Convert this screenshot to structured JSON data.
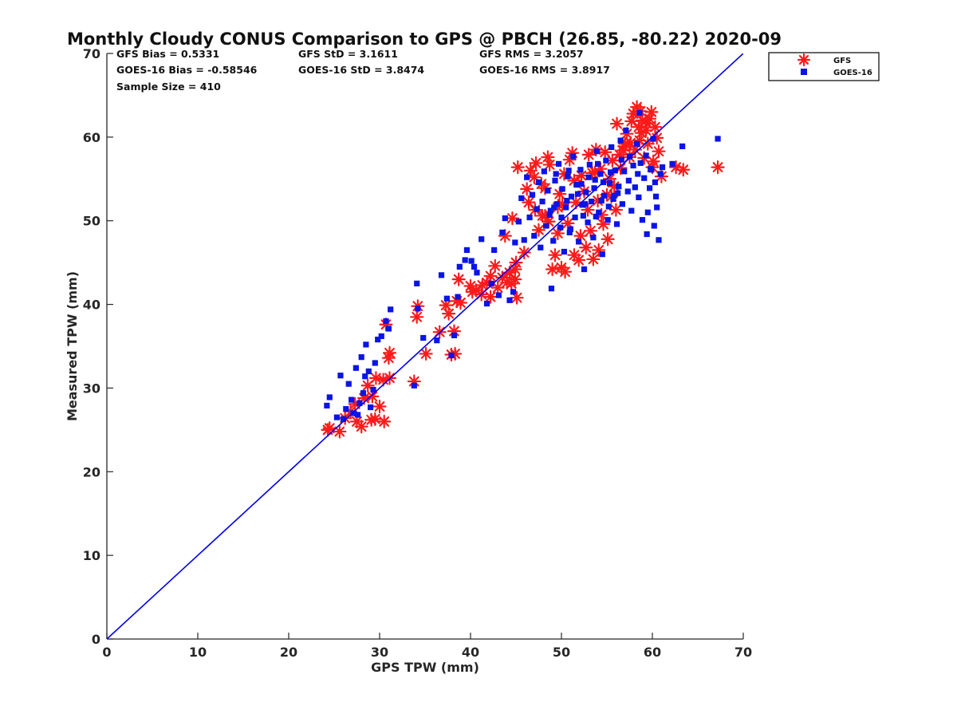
{
  "chart_data": {
    "type": "scatter",
    "title": "Monthly Cloudy CONUS Comparison to GPS @ PBCH (26.85, -80.22) 2020-09",
    "xlabel": "GPS TPW (mm)",
    "ylabel": "Measured TPW (mm)",
    "xlim": [
      0,
      70
    ],
    "ylim": [
      0,
      70
    ],
    "xticks": [
      "0",
      "10",
      "20",
      "30",
      "40",
      "50",
      "60",
      "70"
    ],
    "yticks": [
      "0",
      "10",
      "20",
      "30",
      "40",
      "50",
      "60",
      "70"
    ],
    "grid": false,
    "legend_position": "top-right",
    "annotations": {
      "gfs_bias": "GFS Bias = 0.5331",
      "gfs_std": "GFS StD = 3.1611",
      "gfs_rms": "GFS RMS = 3.2057",
      "goes_bias": "GOES-16 Bias = -0.58546",
      "goes_std": "GOES-16 StD = 3.8474",
      "goes_rms": "GOES-16 RMS = 3.8917",
      "sample_size": "Sample Size = 410"
    },
    "reference_line": {
      "x": [
        0,
        70
      ],
      "y": [
        0,
        70
      ],
      "color": "#0000ee"
    },
    "series": [
      {
        "name": "GFS",
        "marker": "asterisk",
        "color": "#ff1a1a",
        "points": [
          [
            24.5,
            25.2
          ],
          [
            24.3,
            25.0
          ],
          [
            25.6,
            24.8
          ],
          [
            26.2,
            26.4
          ],
          [
            26.8,
            27.2
          ],
          [
            27.5,
            26.0
          ],
          [
            28.0,
            25.4
          ],
          [
            27.3,
            28.1
          ],
          [
            28.3,
            28.8
          ],
          [
            28.7,
            30.3
          ],
          [
            29.2,
            29.0
          ],
          [
            29.1,
            26.2
          ],
          [
            29.6,
            31.2
          ],
          [
            30.0,
            27.8
          ],
          [
            30.4,
            31.0
          ],
          [
            30.5,
            26.0
          ],
          [
            30.7,
            37.6
          ],
          [
            31.0,
            33.6
          ],
          [
            31.1,
            31.2
          ],
          [
            31.1,
            34.2
          ],
          [
            29.5,
            26.3
          ],
          [
            33.8,
            30.8
          ],
          [
            34.2,
            39.8
          ],
          [
            34.1,
            38.5
          ],
          [
            35.1,
            34.1
          ],
          [
            36.6,
            36.7
          ],
          [
            37.3,
            39.9
          ],
          [
            37.6,
            38.9
          ],
          [
            37.9,
            34.0
          ],
          [
            38.3,
            34.1
          ],
          [
            38.2,
            36.8
          ],
          [
            38.5,
            40.4
          ],
          [
            38.9,
            40.2
          ],
          [
            38.7,
            43.0
          ],
          [
            40.0,
            42.2
          ],
          [
            40.2,
            41.5
          ],
          [
            40.6,
            41.7
          ],
          [
            41.3,
            42.3
          ],
          [
            41.8,
            42.6
          ],
          [
            42.2,
            40.9
          ],
          [
            42.7,
            44.6
          ],
          [
            43.0,
            42.0
          ],
          [
            43.5,
            43.2
          ],
          [
            44.0,
            42.6
          ],
          [
            43.8,
            48.2
          ],
          [
            44.3,
            43.8
          ],
          [
            44.5,
            42.5
          ],
          [
            44.9,
            43.0
          ],
          [
            45.0,
            45.0
          ],
          [
            45.1,
            40.8
          ],
          [
            44.6,
            50.3
          ],
          [
            45.2,
            56.4
          ],
          [
            45.9,
            46.2
          ],
          [
            46.2,
            53.8
          ],
          [
            46.4,
            52.2
          ],
          [
            46.6,
            56.0
          ],
          [
            47.0,
            55.2
          ],
          [
            47.2,
            56.9
          ],
          [
            47.5,
            48.9
          ],
          [
            47.8,
            54.4
          ],
          [
            47.9,
            50.6
          ],
          [
            48.2,
            53.9
          ],
          [
            48.5,
            57.6
          ],
          [
            48.6,
            49.9
          ],
          [
            48.7,
            56.7
          ],
          [
            49.0,
            44.2
          ],
          [
            49.3,
            45.9
          ],
          [
            49.6,
            48.5
          ],
          [
            49.8,
            53.2
          ],
          [
            50.0,
            44.4
          ],
          [
            50.1,
            52.0
          ],
          [
            50.3,
            55.6
          ],
          [
            50.4,
            43.9
          ],
          [
            50.7,
            49.7
          ],
          [
            50.9,
            57.3
          ],
          [
            51.2,
            58.1
          ],
          [
            51.4,
            54.8
          ],
          [
            51.4,
            45.9
          ],
          [
            51.6,
            52.2
          ],
          [
            51.9,
            45.3
          ],
          [
            52.1,
            48.2
          ],
          [
            52.2,
            55.4
          ],
          [
            52.5,
            53.5
          ],
          [
            52.7,
            46.8
          ],
          [
            52.9,
            51.3
          ],
          [
            53.0,
            57.9
          ],
          [
            53.2,
            48.8
          ],
          [
            53.4,
            55.7
          ],
          [
            53.5,
            45.4
          ],
          [
            53.8,
            58.5
          ],
          [
            54.0,
            52.4
          ],
          [
            54.1,
            46.5
          ],
          [
            54.3,
            56.2
          ],
          [
            54.6,
            49.6
          ],
          [
            54.8,
            58.2
          ],
          [
            55.0,
            53.1
          ],
          [
            55.1,
            47.8
          ],
          [
            55.3,
            55.0
          ],
          [
            55.6,
            57.2
          ],
          [
            55.8,
            54.1
          ],
          [
            56.1,
            61.6
          ],
          [
            56.4,
            57.9
          ],
          [
            56.5,
            56.3
          ],
          [
            56.8,
            58.4
          ],
          [
            57.0,
            59.2
          ],
          [
            57.2,
            60.4
          ],
          [
            57.5,
            57.6
          ],
          [
            57.7,
            61.9
          ],
          [
            57.9,
            62.8
          ],
          [
            58.1,
            58.5
          ],
          [
            58.3,
            63.6
          ],
          [
            58.5,
            61.2
          ],
          [
            58.6,
            59.6
          ],
          [
            58.7,
            63.1
          ],
          [
            58.9,
            62.0
          ],
          [
            59.1,
            57.5
          ],
          [
            59.3,
            60.8
          ],
          [
            59.5,
            59.2
          ],
          [
            59.7,
            62.2
          ],
          [
            59.9,
            63.0
          ],
          [
            60.1,
            57.1
          ],
          [
            60.3,
            61.2
          ],
          [
            60.5,
            59.9
          ],
          [
            60.7,
            58.3
          ],
          [
            61.0,
            55.3
          ],
          [
            56.9,
            58.9
          ],
          [
            57.6,
            59.3
          ],
          [
            58.8,
            60.5
          ],
          [
            59.4,
            61.6
          ],
          [
            60.0,
            56.4
          ],
          [
            62.6,
            56.4
          ],
          [
            63.4,
            56.1
          ],
          [
            67.2,
            56.4
          ],
          [
            44.9,
            44.2
          ],
          [
            42.2,
            43.4
          ],
          [
            41.2,
            41.2
          ],
          [
            48.2,
            50.6
          ],
          [
            47.1,
            51.3
          ],
          [
            49.6,
            51.6
          ],
          [
            53.7,
            55.8
          ],
          [
            55.5,
            52.9
          ],
          [
            56.0,
            51.3
          ],
          [
            54.4,
            50.7
          ]
        ]
      },
      {
        "name": "GOES-16",
        "marker": "square",
        "color": "#0a14e6",
        "points": [
          [
            24.2,
            27.9
          ],
          [
            24.5,
            28.9
          ],
          [
            25.3,
            26.5
          ],
          [
            25.7,
            31.5
          ],
          [
            26.0,
            26.3
          ],
          [
            26.3,
            27.5
          ],
          [
            26.6,
            30.5
          ],
          [
            26.9,
            28.6
          ],
          [
            27.1,
            27.0
          ],
          [
            27.4,
            32.4
          ],
          [
            27.6,
            26.8
          ],
          [
            27.8,
            28.2
          ],
          [
            28.0,
            33.7
          ],
          [
            28.2,
            29.4
          ],
          [
            28.4,
            31.4
          ],
          [
            28.5,
            35.2
          ],
          [
            28.8,
            32.0
          ],
          [
            29.0,
            27.7
          ],
          [
            29.3,
            29.8
          ],
          [
            29.5,
            33.0
          ],
          [
            29.8,
            35.8
          ],
          [
            30.2,
            36.2
          ],
          [
            30.7,
            38.0
          ],
          [
            31.0,
            37.1
          ],
          [
            31.2,
            39.4
          ],
          [
            33.8,
            30.3
          ],
          [
            34.1,
            42.5
          ],
          [
            34.2,
            39.5
          ],
          [
            34.8,
            36.0
          ],
          [
            36.3,
            35.7
          ],
          [
            36.8,
            43.5
          ],
          [
            37.4,
            40.7
          ],
          [
            37.9,
            33.9
          ],
          [
            38.2,
            36.3
          ],
          [
            38.6,
            40.9
          ],
          [
            38.8,
            44.5
          ],
          [
            39.4,
            45.3
          ],
          [
            39.6,
            46.5
          ],
          [
            40.1,
            45.2
          ],
          [
            40.4,
            44.5
          ],
          [
            40.7,
            43.8
          ],
          [
            41.2,
            47.8
          ],
          [
            41.8,
            40.1
          ],
          [
            42.3,
            42.5
          ],
          [
            42.6,
            46.5
          ],
          [
            43.1,
            41.1
          ],
          [
            43.5,
            48.6
          ],
          [
            43.8,
            50.3
          ],
          [
            44.3,
            40.5
          ],
          [
            44.7,
            41.5
          ],
          [
            44.9,
            47.4
          ],
          [
            45.3,
            49.9
          ],
          [
            45.6,
            52.7
          ],
          [
            45.9,
            47.7
          ],
          [
            46.2,
            55.2
          ],
          [
            46.5,
            50.4
          ],
          [
            46.8,
            53.1
          ],
          [
            47.0,
            48.2
          ],
          [
            47.3,
            51.4
          ],
          [
            47.5,
            54.6
          ],
          [
            47.7,
            46.8
          ],
          [
            47.9,
            52.3
          ],
          [
            48.1,
            55.9
          ],
          [
            48.3,
            49.4
          ],
          [
            48.5,
            53.6
          ],
          [
            48.7,
            50.7
          ],
          [
            48.9,
            41.9
          ],
          [
            49.1,
            47.6
          ],
          [
            49.3,
            54.8
          ],
          [
            49.5,
            52.0
          ],
          [
            49.7,
            56.8
          ],
          [
            49.9,
            49.2
          ],
          [
            50.1,
            53.8
          ],
          [
            50.3,
            46.3
          ],
          [
            50.5,
            51.6
          ],
          [
            50.7,
            55.3
          ],
          [
            50.9,
            48.6
          ],
          [
            51.1,
            52.9
          ],
          [
            51.3,
            57.7
          ],
          [
            51.5,
            50.4
          ],
          [
            51.7,
            54.3
          ],
          [
            51.9,
            47.5
          ],
          [
            52.1,
            56.1
          ],
          [
            52.3,
            51.9
          ],
          [
            52.5,
            44.2
          ],
          [
            52.7,
            53.4
          ],
          [
            52.9,
            49.8
          ],
          [
            53.1,
            56.7
          ],
          [
            53.3,
            52.3
          ],
          [
            53.5,
            48.0
          ],
          [
            53.7,
            54.9
          ],
          [
            53.9,
            58.3
          ],
          [
            54.1,
            51.0
          ],
          [
            54.3,
            55.6
          ],
          [
            54.5,
            46.0
          ],
          [
            54.7,
            53.0
          ],
          [
            54.9,
            57.2
          ],
          [
            55.1,
            50.1
          ],
          [
            55.3,
            54.5
          ],
          [
            55.5,
            58.8
          ],
          [
            55.7,
            52.6
          ],
          [
            55.9,
            56.0
          ],
          [
            56.1,
            49.6
          ],
          [
            56.3,
            54.1
          ],
          [
            56.5,
            59.6
          ],
          [
            56.7,
            52.0
          ],
          [
            56.9,
            55.9
          ],
          [
            57.1,
            60.8
          ],
          [
            57.3,
            53.5
          ],
          [
            57.5,
            57.7
          ],
          [
            57.7,
            51.2
          ],
          [
            57.9,
            56.6
          ],
          [
            58.1,
            54.0
          ],
          [
            58.3,
            59.2
          ],
          [
            58.5,
            52.8
          ],
          [
            58.7,
            56.9
          ],
          [
            58.9,
            50.1
          ],
          [
            59.1,
            55.1
          ],
          [
            59.3,
            57.8
          ],
          [
            59.5,
            51.0
          ],
          [
            59.7,
            53.9
          ],
          [
            59.9,
            56.1
          ],
          [
            60.1,
            59.8
          ],
          [
            60.3,
            54.6
          ],
          [
            60.5,
            51.6
          ],
          [
            60.7,
            47.7
          ],
          [
            60.9,
            55.6
          ],
          [
            61.1,
            56.4
          ],
          [
            62.2,
            56.8
          ],
          [
            63.3,
            58.9
          ],
          [
            67.2,
            59.8
          ],
          [
            58.6,
            62.9
          ],
          [
            59.8,
            56.2
          ],
          [
            60.2,
            49.4
          ],
          [
            59.4,
            48.4
          ],
          [
            60.4,
            52.9
          ],
          [
            49.2,
            51.6
          ],
          [
            50.6,
            52.4
          ],
          [
            51.8,
            53.2
          ],
          [
            52.6,
            52.0
          ],
          [
            53.6,
            53.9
          ],
          [
            54.6,
            54.6
          ],
          [
            55.4,
            55.8
          ],
          [
            56.2,
            53.3
          ],
          [
            52.2,
            54.4
          ],
          [
            53.0,
            55.2
          ],
          [
            50.0,
            50.4
          ],
          [
            51.0,
            49.0
          ],
          [
            53.8,
            50.5
          ],
          [
            55.2,
            51.7
          ],
          [
            54.0,
            56.8
          ],
          [
            55.8,
            53.0
          ],
          [
            57.4,
            54.8
          ],
          [
            58.4,
            55.6
          ],
          [
            56.6,
            57.3
          ],
          [
            49.4,
            55.6
          ],
          [
            48.8,
            51.2
          ],
          [
            50.8,
            56.0
          ],
          [
            52.4,
            50.6
          ],
          [
            54.4,
            52.4
          ]
        ]
      }
    ]
  }
}
